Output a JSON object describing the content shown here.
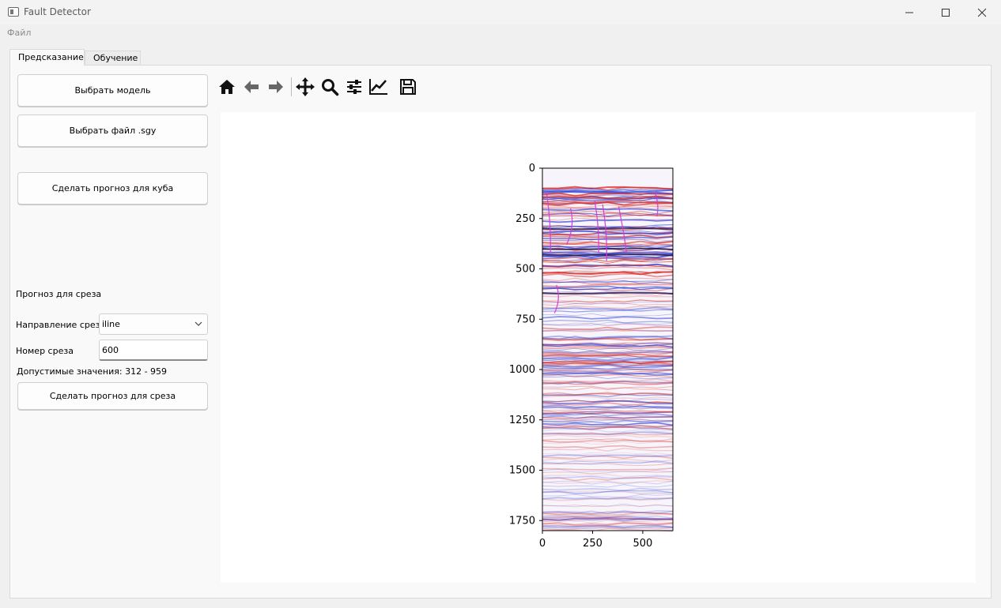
{
  "window": {
    "title": "Fault Detector",
    "controls": [
      "minimize-icon",
      "maximize-icon",
      "close-icon"
    ]
  },
  "menu": {
    "file": "Файл"
  },
  "tabs": [
    {
      "label": "Предсказание",
      "active": true
    },
    {
      "label": "Обучение",
      "active": false
    }
  ],
  "left_panel": {
    "choose_model": "Выбрать модель",
    "choose_file": "Выбрать файл .sgy",
    "predict_cube": "Сделать прогноз для куба",
    "slice_section_title": "Прогноз для среза",
    "direction_label": "Направление среза",
    "direction_value": "iline",
    "slice_number_label": "Номер среза",
    "slice_number_value": "600",
    "allowed_range": "Допустимые значения: 312 - 959",
    "predict_slice": "Сделать прогноз для среза"
  },
  "toolbar": {
    "icons": [
      "home-icon",
      "back-icon",
      "forward-icon",
      "pan-icon",
      "zoom-icon",
      "configure-subplots-icon",
      "edit-axis-icon",
      "save-icon"
    ]
  },
  "chart_data": {
    "type": "heatmap",
    "description_colors": {
      "positive": "#d9302a",
      "negative": "#2d3fd6",
      "fault": "#d33ad6"
    },
    "xlim": [
      0,
      650
    ],
    "ylim": [
      1800,
      0
    ],
    "x_ticks": [
      0,
      250,
      500
    ],
    "y_ticks": [
      0,
      250,
      500,
      750,
      1000,
      1250,
      1500,
      1750
    ],
    "x_tick_labels": [
      "0",
      "250",
      "500"
    ],
    "y_tick_labels": [
      "0",
      "250",
      "500",
      "750",
      "1000",
      "1250",
      "1500",
      "1750"
    ]
  }
}
